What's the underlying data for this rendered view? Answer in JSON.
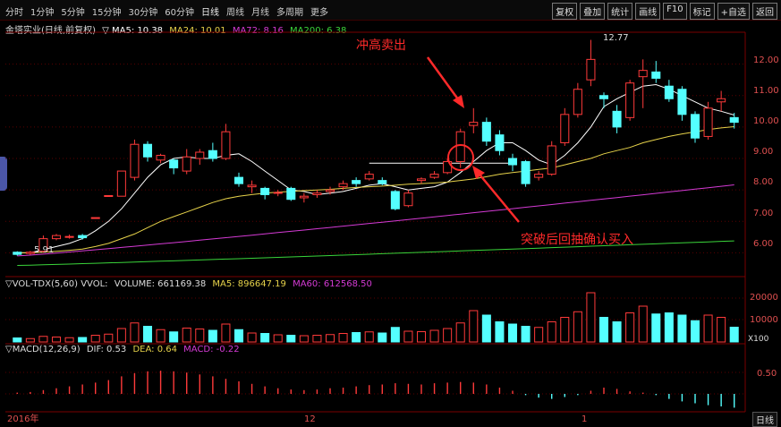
{
  "toolbar": {
    "periods": [
      "分时",
      "1分钟",
      "5分钟",
      "15分钟",
      "30分钟",
      "60分钟",
      "日线",
      "周线",
      "月线",
      "多周期",
      "更多"
    ],
    "active_period": "日线",
    "buttons": [
      "复权",
      "叠加",
      "统计",
      "画线",
      "F10",
      "标记",
      "+自选",
      "返回"
    ]
  },
  "main_header": {
    "title": "金塔实业(日线,前复权)",
    "ma5": "▽ MA5: 10.38",
    "ma24": "MA24: 10.01",
    "ma72": "MA72: 8.16",
    "ma200": "MA200: 6.38",
    "ma_colors": {
      "ma5": "#ffffff",
      "ma24": "#e6d24a",
      "ma72": "#d43ad4",
      "ma200": "#3ad43a"
    }
  },
  "vol_header": {
    "title": "▽VOL-TDX(5,60) VVOL:",
    "volume": "VOLUME: 661169.38",
    "ma5": "MA5: 896647.19",
    "ma60": "MA60: 612568.50"
  },
  "macd_header": {
    "title": "▽MACD(12,26,9)",
    "dif": "DIF: 0.53",
    "dea": "DEA: 0.64",
    "macd": "MACD: -0.22"
  },
  "annotations": {
    "sell": "冲高卖出",
    "buy": "突破后回抽确认买入",
    "high_label": "12.77",
    "low_label": "5.91"
  },
  "axes": {
    "price_ticks": [
      "12.00",
      "11.00",
      "10.00",
      "9.00",
      "8.00",
      "7.00",
      "6.00"
    ],
    "vol_ticks": [
      "20000",
      "10000"
    ],
    "vol_unit": "X100",
    "macd_ticks": [
      "0.50"
    ],
    "dates": [
      "2016年",
      "12",
      "1"
    ],
    "bottom_tab": "日线"
  },
  "chart_data": {
    "type": "candlestick",
    "ylim": [
      5.5,
      12.9
    ],
    "candles": [
      {
        "o": 6.02,
        "c": 5.95,
        "h": 6.05,
        "l": 5.91
      },
      {
        "o": 5.98,
        "c": 6.02,
        "h": 6.06,
        "l": 5.94
      },
      {
        "o": 6.05,
        "c": 6.45,
        "h": 6.55,
        "l": 6.0
      },
      {
        "o": 6.45,
        "c": 6.55,
        "h": 6.6,
        "l": 6.4
      },
      {
        "o": 6.5,
        "c": 6.52,
        "h": 6.58,
        "l": 6.45
      },
      {
        "o": 6.55,
        "c": 6.48,
        "h": 6.6,
        "l": 6.42
      },
      {
        "o": 7.1,
        "c": 7.12,
        "h": 7.12,
        "l": 7.08
      },
      {
        "o": 7.8,
        "c": 7.82,
        "h": 7.82,
        "l": 7.78
      },
      {
        "o": 7.8,
        "c": 8.6,
        "h": 8.6,
        "l": 7.8
      },
      {
        "o": 8.4,
        "c": 9.45,
        "h": 9.6,
        "l": 8.3
      },
      {
        "o": 9.45,
        "c": 9.05,
        "h": 9.55,
        "l": 8.9
      },
      {
        "o": 8.95,
        "c": 9.1,
        "h": 9.15,
        "l": 8.85
      },
      {
        "o": 8.95,
        "c": 8.7,
        "h": 9.0,
        "l": 8.5
      },
      {
        "o": 8.6,
        "c": 9.05,
        "h": 9.3,
        "l": 8.5
      },
      {
        "o": 9.0,
        "c": 9.2,
        "h": 9.3,
        "l": 8.8
      },
      {
        "o": 9.25,
        "c": 9.0,
        "h": 9.5,
        "l": 8.9
      },
      {
        "o": 9.0,
        "c": 9.85,
        "h": 10.1,
        "l": 8.95
      },
      {
        "o": 8.4,
        "c": 8.2,
        "h": 8.55,
        "l": 8.1
      },
      {
        "o": 8.1,
        "c": 8.15,
        "h": 8.3,
        "l": 7.9
      },
      {
        "o": 8.05,
        "c": 7.85,
        "h": 8.1,
        "l": 7.7
      },
      {
        "o": 7.9,
        "c": 7.92,
        "h": 8.0,
        "l": 7.8
      },
      {
        "o": 8.05,
        "c": 7.7,
        "h": 8.1,
        "l": 7.65
      },
      {
        "o": 7.75,
        "c": 7.8,
        "h": 7.9,
        "l": 7.6
      },
      {
        "o": 7.85,
        "c": 7.9,
        "h": 8.0,
        "l": 7.75
      },
      {
        "o": 7.95,
        "c": 8.0,
        "h": 8.1,
        "l": 7.85
      },
      {
        "o": 8.1,
        "c": 8.2,
        "h": 8.3,
        "l": 8.0
      },
      {
        "o": 8.3,
        "c": 8.2,
        "h": 8.4,
        "l": 8.1
      },
      {
        "o": 8.35,
        "c": 8.5,
        "h": 8.6,
        "l": 8.3
      },
      {
        "o": 8.3,
        "c": 8.2,
        "h": 8.4,
        "l": 8.15
      },
      {
        "o": 7.95,
        "c": 7.4,
        "h": 8.0,
        "l": 7.35
      },
      {
        "o": 7.5,
        "c": 7.9,
        "h": 8.0,
        "l": 7.45
      },
      {
        "o": 8.3,
        "c": 8.35,
        "h": 8.4,
        "l": 8.2
      },
      {
        "o": 8.4,
        "c": 8.5,
        "h": 8.6,
        "l": 8.35
      },
      {
        "o": 8.55,
        "c": 8.9,
        "h": 9.0,
        "l": 8.5
      },
      {
        "o": 8.9,
        "c": 9.85,
        "h": 9.95,
        "l": 8.7
      },
      {
        "o": 10.05,
        "c": 10.15,
        "h": 10.6,
        "l": 9.8
      },
      {
        "o": 10.15,
        "c": 9.55,
        "h": 10.3,
        "l": 9.4
      },
      {
        "o": 9.75,
        "c": 9.25,
        "h": 9.9,
        "l": 9.1
      },
      {
        "o": 9.0,
        "c": 8.8,
        "h": 9.15,
        "l": 8.6
      },
      {
        "o": 8.9,
        "c": 8.2,
        "h": 8.95,
        "l": 8.1
      },
      {
        "o": 8.4,
        "c": 8.5,
        "h": 8.6,
        "l": 8.3
      },
      {
        "o": 8.5,
        "c": 9.4,
        "h": 9.55,
        "l": 8.45
      },
      {
        "o": 9.5,
        "c": 10.4,
        "h": 10.6,
        "l": 9.4
      },
      {
        "o": 10.4,
        "c": 11.2,
        "h": 11.4,
        "l": 10.3
      },
      {
        "o": 11.5,
        "c": 12.15,
        "h": 12.77,
        "l": 11.3
      },
      {
        "o": 11.0,
        "c": 10.9,
        "h": 11.1,
        "l": 10.6
      },
      {
        "o": 10.5,
        "c": 10.0,
        "h": 10.7,
        "l": 9.8
      },
      {
        "o": 10.3,
        "c": 11.4,
        "h": 11.5,
        "l": 10.2
      },
      {
        "o": 11.6,
        "c": 11.8,
        "h": 12.15,
        "l": 10.6
      },
      {
        "o": 11.75,
        "c": 11.55,
        "h": 12.1,
        "l": 11.4
      },
      {
        "o": 11.3,
        "c": 10.9,
        "h": 11.5,
        "l": 10.8
      },
      {
        "o": 11.2,
        "c": 10.4,
        "h": 11.3,
        "l": 10.2
      },
      {
        "o": 10.4,
        "c": 9.65,
        "h": 10.5,
        "l": 9.5
      },
      {
        "o": 9.7,
        "c": 10.6,
        "h": 10.8,
        "l": 9.6
      },
      {
        "o": 10.8,
        "c": 10.9,
        "h": 11.15,
        "l": 10.5
      },
      {
        "o": 10.3,
        "c": 10.15,
        "h": 10.45,
        "l": 9.95
      }
    ],
    "ma5": [
      6.0,
      6.0,
      6.1,
      6.2,
      6.3,
      6.45,
      6.7,
      7.0,
      7.4,
      7.9,
      8.4,
      8.8,
      9.0,
      9.05,
      9.0,
      9.0,
      9.1,
      9.15,
      8.9,
      8.6,
      8.3,
      8.0,
      7.95,
      7.85,
      7.9,
      7.95,
      8.05,
      8.15,
      8.2,
      8.1,
      8.0,
      8.05,
      8.1,
      8.25,
      8.55,
      8.9,
      9.25,
      9.5,
      9.5,
      9.25,
      8.95,
      8.8,
      9.1,
      9.5,
      10.0,
      10.65,
      10.9,
      11.1,
      11.3,
      11.35,
      11.2,
      11.0,
      10.8,
      10.6,
      10.5,
      10.38
    ],
    "ma24": [
      6.0,
      6.0,
      6.02,
      6.05,
      6.08,
      6.12,
      6.2,
      6.3,
      6.45,
      6.6,
      6.8,
      7.0,
      7.15,
      7.3,
      7.45,
      7.6,
      7.72,
      7.8,
      7.85,
      7.9,
      7.93,
      7.95,
      7.98,
      8.0,
      8.02,
      8.05,
      8.08,
      8.1,
      8.12,
      8.15,
      8.18,
      8.2,
      8.22,
      8.25,
      8.3,
      8.35,
      8.42,
      8.5,
      8.55,
      8.6,
      8.65,
      8.7,
      8.8,
      8.9,
      9.0,
      9.15,
      9.25,
      9.35,
      9.5,
      9.6,
      9.7,
      9.78,
      9.85,
      9.92,
      9.97,
      10.01
    ],
    "ma72_range": [
      5.9,
      8.16
    ],
    "ma200_range": [
      5.6,
      6.38
    ],
    "breakout_level": 8.85,
    "volume": [
      1800,
      1500,
      2500,
      2200,
      1900,
      2000,
      3000,
      3500,
      6000,
      8500,
      7000,
      5500,
      4500,
      6200,
      5800,
      5200,
      8000,
      5500,
      4000,
      3800,
      3200,
      3000,
      2800,
      3000,
      3300,
      3800,
      4200,
      4500,
      4000,
      6500,
      4800,
      4600,
      5200,
      6000,
      8500,
      14000,
      12000,
      9000,
      8000,
      7000,
      6500,
      9000,
      11000,
      13500,
      22000,
      11000,
      9000,
      13000,
      16000,
      12500,
      13000,
      12000,
      9500,
      12000,
      11000,
      6600
    ],
    "macd_hist": [
      0.02,
      0.03,
      0.06,
      0.09,
      0.12,
      0.15,
      0.18,
      0.22,
      0.28,
      0.33,
      0.36,
      0.37,
      0.36,
      0.34,
      0.31,
      0.28,
      0.24,
      0.2,
      0.16,
      0.12,
      0.09,
      0.07,
      0.06,
      0.07,
      0.09,
      0.1,
      0.12,
      0.14,
      0.15,
      0.17,
      0.16,
      0.15,
      0.17,
      0.18,
      0.19,
      0.18,
      0.15,
      0.1,
      0.05,
      -0.02,
      -0.06,
      -0.08,
      -0.05,
      -0.02,
      0.05,
      0.1,
      0.08,
      0.04,
      0.02,
      -0.02,
      -0.08,
      -0.12,
      -0.15,
      -0.18,
      -0.2,
      -0.22
    ]
  }
}
